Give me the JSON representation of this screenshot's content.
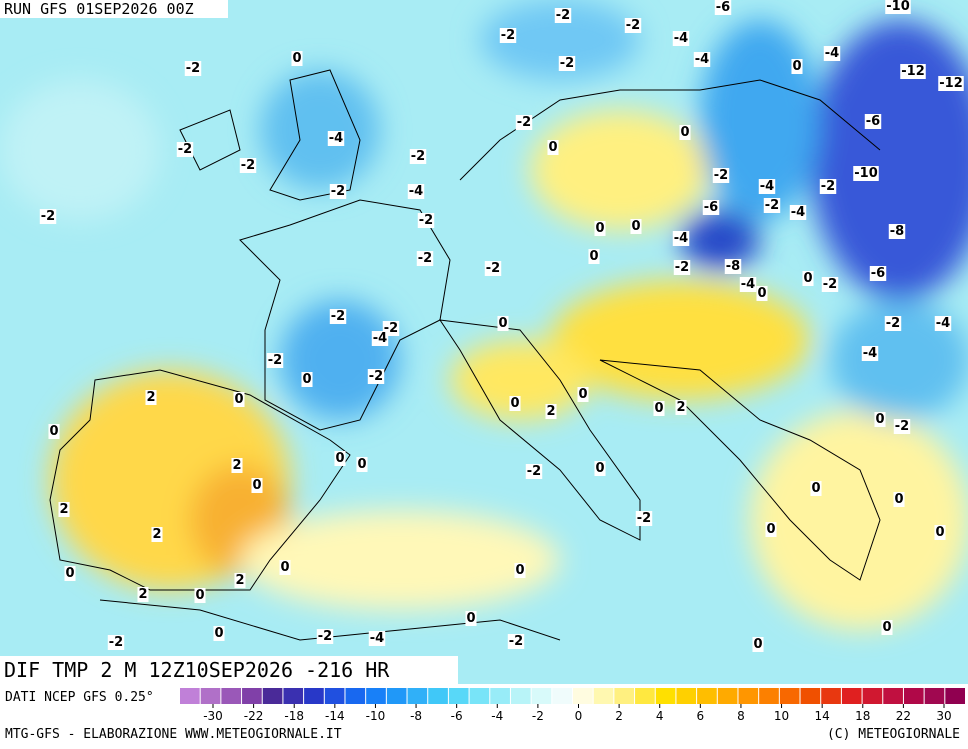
{
  "header": {
    "run": "RUN GFS 01SEP2026 00Z"
  },
  "map": {
    "title": "DIF TMP 2 M 12Z10SEP2026 -216 HR",
    "labels": [
      -2,
      -2,
      -6,
      -10,
      0,
      -2,
      -2,
      -4,
      -4,
      0,
      -4,
      -12,
      -12,
      -2,
      -4,
      -2,
      -2,
      -2,
      0,
      0,
      -6,
      -2,
      -4,
      -2,
      -2,
      -4,
      -2,
      -10,
      -2,
      -2,
      -6,
      -2,
      -4,
      0,
      0,
      -4,
      -8,
      -2,
      -2,
      0,
      -2,
      -8,
      -6,
      -4,
      0,
      0,
      -2,
      -2,
      -2,
      -4,
      0,
      -2,
      -4,
      -4,
      -2,
      0,
      -2,
      2,
      0,
      0,
      0,
      2,
      0,
      0,
      2,
      0,
      -2,
      2,
      0,
      0,
      0,
      -2,
      0,
      0,
      0,
      2,
      2,
      -2,
      0,
      0,
      0,
      0,
      0,
      2,
      2,
      0,
      0,
      -2,
      0,
      -4,
      -2,
      -2,
      0,
      0
    ]
  },
  "legend": {
    "source": "DATI NCEP GFS 0.25°",
    "colors": [
      "#c080d8",
      "#b070c8",
      "#9a58b8",
      "#8040a8",
      "#4a2a98",
      "#3a30b0",
      "#2838c8",
      "#2050e0",
      "#1868f0",
      "#1880f8",
      "#2098f8",
      "#30b0f8",
      "#40c8f8",
      "#58d8f8",
      "#78e4f8",
      "#98ecf8",
      "#b8f4f8",
      "#d8fafa",
      "#f0fcfc",
      "#fffce0",
      "#fff8b0",
      "#fff080",
      "#ffe840",
      "#ffe000",
      "#ffd000",
      "#ffbe00",
      "#ffaa00",
      "#ff9600",
      "#fc8000",
      "#f86800",
      "#f05000",
      "#e83810",
      "#e02020",
      "#d01830",
      "#c01040",
      "#b00848",
      "#a00850",
      "#900050"
    ],
    "ticks": [
      -30,
      -22,
      -18,
      -14,
      -10,
      -8,
      -6,
      -4,
      -2,
      0,
      2,
      4,
      6,
      8,
      10,
      14,
      18,
      22,
      30
    ]
  },
  "footer": {
    "left": "MTG-GFS - ELABORAZIONE WWW.METEOGIORNALE.IT",
    "right": "(C) METEOGIORNALE"
  }
}
